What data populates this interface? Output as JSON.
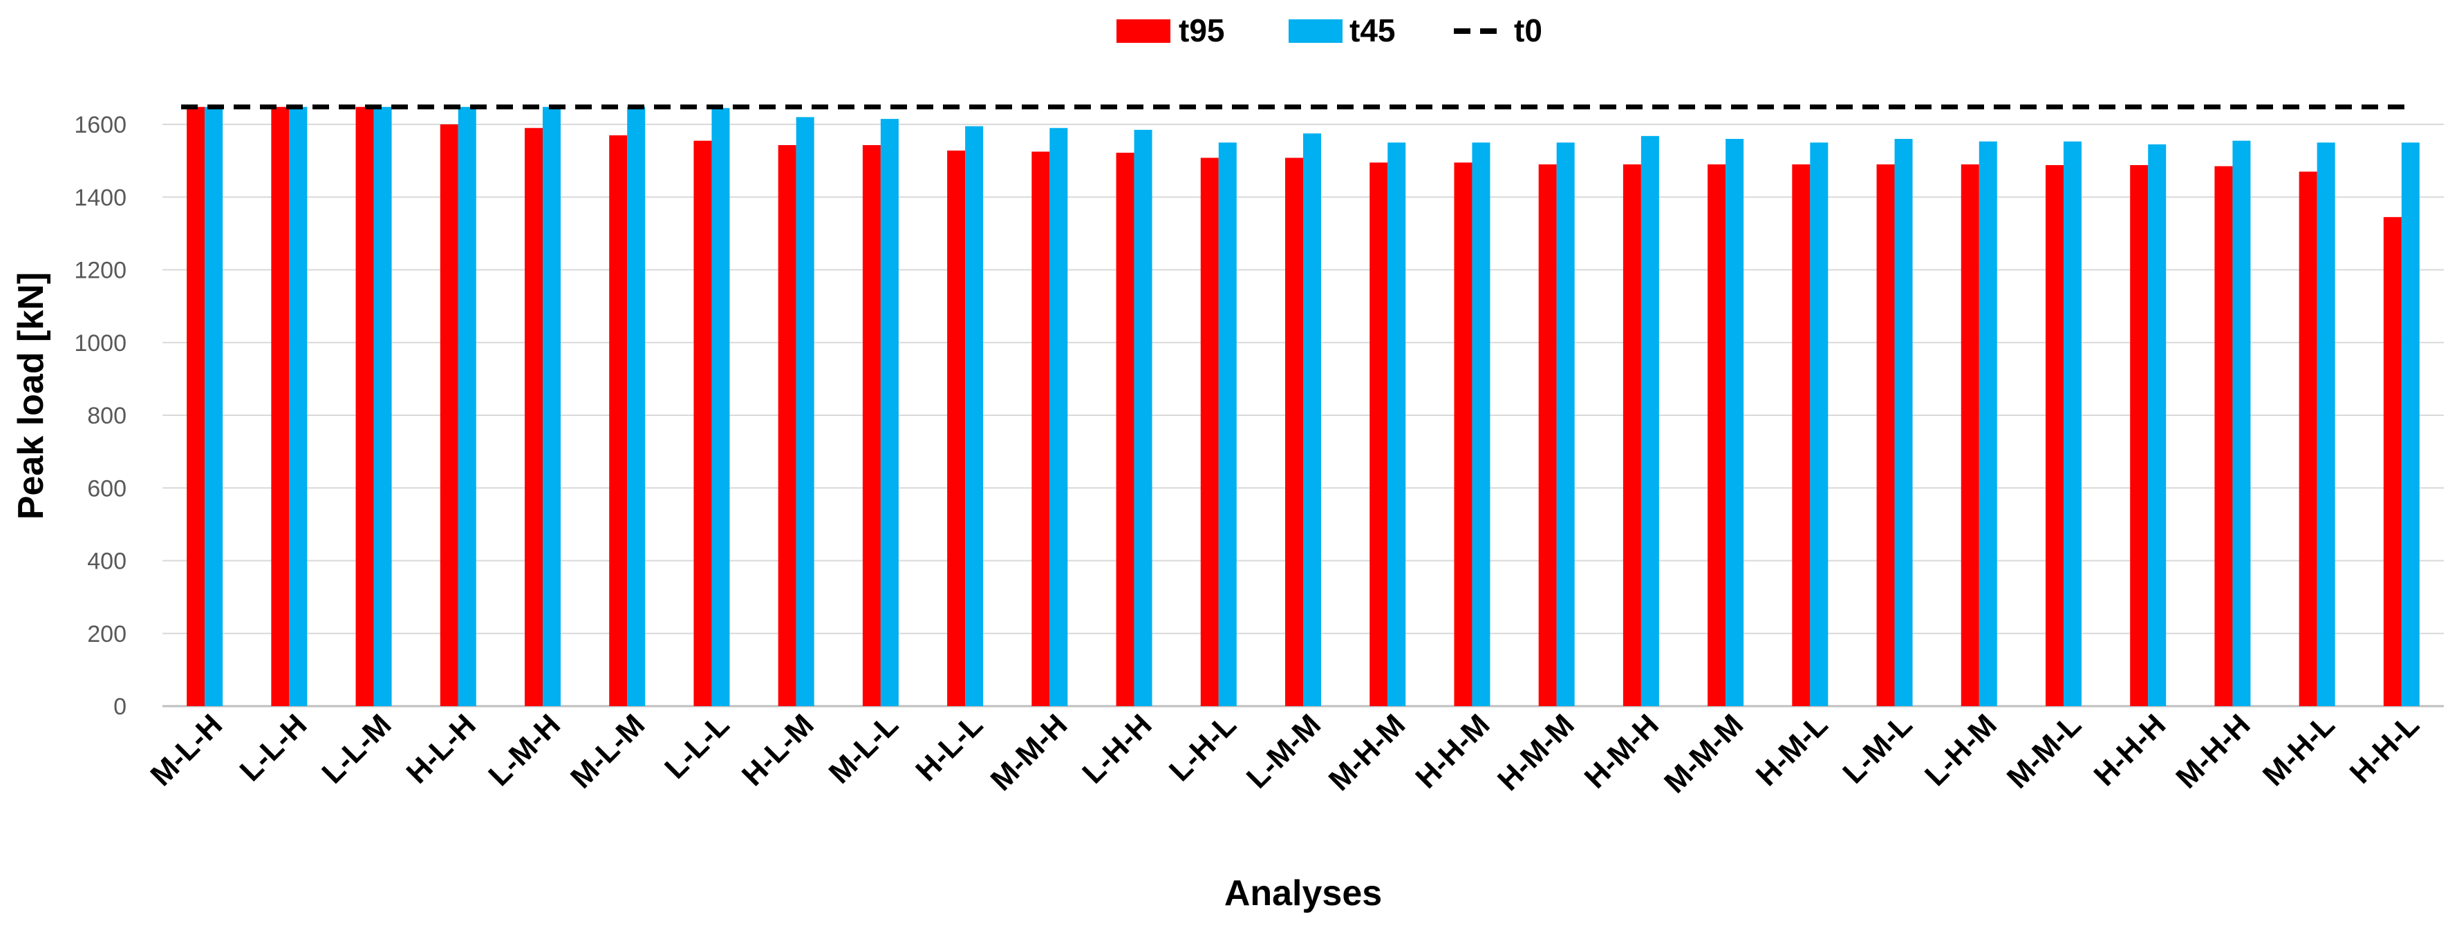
{
  "chart_data": {
    "type": "bar",
    "title": "",
    "xlabel": "Analyses",
    "ylabel": "Peak load [kN]",
    "ylim": [
      0,
      1800
    ],
    "yticks": [
      0,
      200,
      400,
      600,
      800,
      1000,
      1200,
      1400,
      1600
    ],
    "grid": true,
    "legend_position": "top-center",
    "categories": [
      "M-L-H",
      "L-L-H",
      "L-L-M",
      "H-L-H",
      "L-M-H",
      "M-L-M",
      "L-L-L",
      "H-L-M",
      "M-L-L",
      "H-L-L",
      "M-M-H",
      "L-H-H",
      "L-H-L",
      "L-M-M",
      "M-H-M",
      "H-H-M",
      "H-M-M",
      "H-M-H",
      "M-M-M",
      "H-M-L",
      "L-M-L",
      "L-H-M",
      "M-M-L",
      "H-H-H",
      "M-H-H",
      "M-H-L",
      "H-H-L"
    ],
    "series": [
      {
        "name": "t95",
        "color": "#ff0000",
        "values": [
          1648,
          1648,
          1648,
          1600,
          1590,
          1570,
          1555,
          1543,
          1543,
          1528,
          1525,
          1522,
          1508,
          1508,
          1495,
          1495,
          1490,
          1490,
          1490,
          1490,
          1490,
          1490,
          1488,
          1488,
          1485,
          1470,
          1345
        ]
      },
      {
        "name": "t45",
        "color": "#00b0f0",
        "values": [
          1648,
          1648,
          1648,
          1648,
          1648,
          1648,
          1645,
          1620,
          1615,
          1595,
          1590,
          1585,
          1550,
          1575,
          1550,
          1550,
          1550,
          1568,
          1560,
          1550,
          1560,
          1553,
          1553,
          1545,
          1555,
          1550,
          1550
        ]
      }
    ],
    "reference_line": {
      "name": "t0",
      "value": 1648,
      "color": "#000000",
      "style": "dashed"
    }
  }
}
